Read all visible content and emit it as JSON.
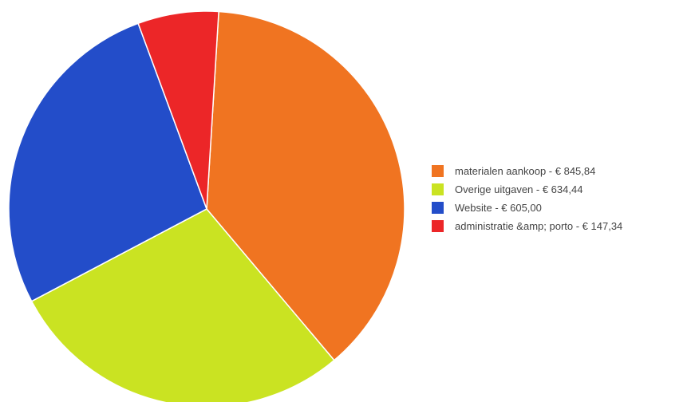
{
  "chart_data": {
    "type": "pie",
    "title": "",
    "slices": [
      {
        "label": "materialen aankoop - € 845,84",
        "value": 845.84,
        "color": "#f07421"
      },
      {
        "label": "Overige uitgaven - € 634,44",
        "value": 634.44,
        "color": "#cae322"
      },
      {
        "label": "Website - € 605,00",
        "value": 605.0,
        "color": "#234dc9"
      },
      {
        "label": "administratie &amp; porto - € 147,34",
        "value": 147.34,
        "color": "#ec2628"
      }
    ],
    "legend": {
      "position": "right"
    }
  }
}
